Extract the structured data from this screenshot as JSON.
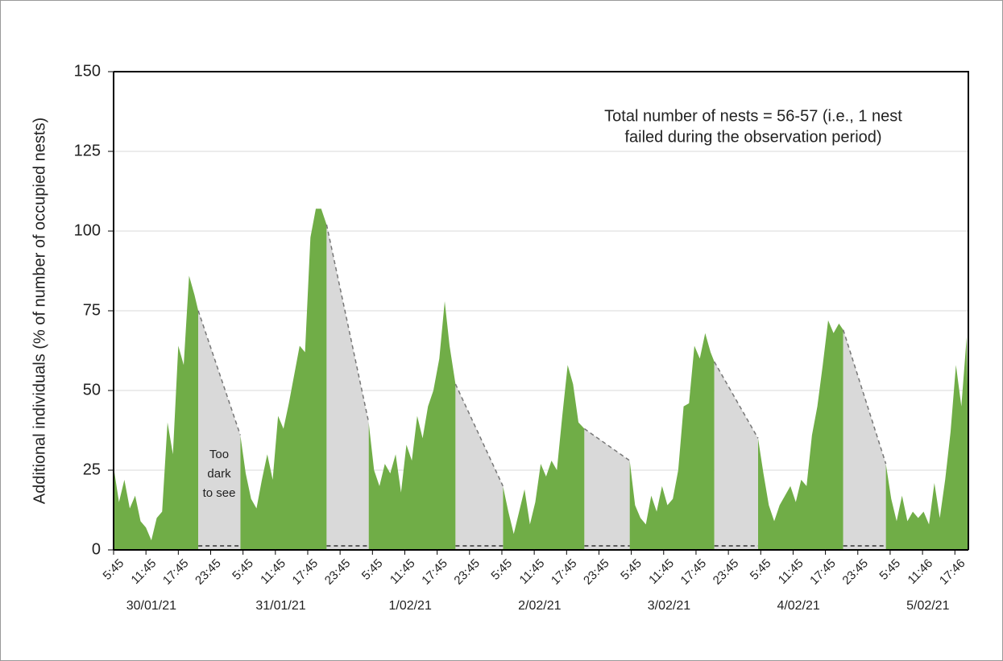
{
  "chart_data": {
    "type": "area",
    "y_label": "Additional individuals (% of number of occupied nests)",
    "annotation": [
      "Total number of nests = 56-57 (i.e., 1 nest",
      "failed during the observation period)"
    ],
    "gap_note": [
      "Too",
      "dark",
      "to see"
    ],
    "dates": [
      "30/01/21",
      "31/01/21",
      "1/02/21",
      "2/02/21",
      "3/02/21",
      "4/02/21",
      "5/02/21"
    ],
    "xlim": [
      0,
      158.5
    ],
    "xticks": [
      {
        "value": 0,
        "label": "5:45"
      },
      {
        "value": 6,
        "label": "11:45"
      },
      {
        "value": 12,
        "label": "17:45"
      },
      {
        "value": 18,
        "label": "23:45"
      },
      {
        "value": 24,
        "label": "5:45"
      },
      {
        "value": 30,
        "label": "11:45"
      },
      {
        "value": 36,
        "label": "17:45"
      },
      {
        "value": 42,
        "label": "23:45"
      },
      {
        "value": 48,
        "label": "5:45"
      },
      {
        "value": 54,
        "label": "11:45"
      },
      {
        "value": 60,
        "label": "17:45"
      },
      {
        "value": 66,
        "label": "23:45"
      },
      {
        "value": 72,
        "label": "5:45"
      },
      {
        "value": 78,
        "label": "11:45"
      },
      {
        "value": 84,
        "label": "17:45"
      },
      {
        "value": 90,
        "label": "23:45"
      },
      {
        "value": 96,
        "label": "5:45"
      },
      {
        "value": 102,
        "label": "11:45"
      },
      {
        "value": 108,
        "label": "17:45"
      },
      {
        "value": 114,
        "label": "23:45"
      },
      {
        "value": 120,
        "label": "5:45"
      },
      {
        "value": 126,
        "label": "11:45"
      },
      {
        "value": 132,
        "label": "17:45"
      },
      {
        "value": 138,
        "label": "23:45"
      },
      {
        "value": 144,
        "label": "5:45"
      },
      {
        "value": 150,
        "label": "11:46"
      },
      {
        "value": 156,
        "label": "17:46"
      }
    ],
    "ylim": [
      0,
      150
    ],
    "yticks": [
      0,
      25,
      50,
      75,
      100,
      125,
      150
    ],
    "grid": true,
    "series": [
      {
        "color": "#70ad47",
        "style": "solid",
        "x": [
          0,
          1,
          2,
          3,
          4,
          5,
          6,
          7,
          8,
          9,
          10,
          11,
          12,
          13,
          14,
          15,
          15.7,
          null,
          23.5,
          24.5,
          25.5,
          26.5,
          27.5,
          28.5,
          29.5,
          30.5,
          31.5,
          32.5,
          33.5,
          34.5,
          35.5,
          36.5,
          37.5,
          38.5,
          39.5,
          null,
          47.3,
          48.3,
          49.3,
          50.3,
          51.3,
          52.3,
          53.3,
          54.3,
          55.3,
          56.3,
          57.3,
          58.3,
          59.3,
          60.4,
          61.4,
          62.3,
          63.4,
          null,
          72.2,
          73.2,
          74.2,
          75.2,
          76.2,
          77.2,
          78.2,
          79.2,
          80.2,
          81.2,
          82.2,
          83.2,
          84.2,
          85.2,
          86.2,
          87.3,
          null,
          95.7,
          96.7,
          97.7,
          98.7,
          99.7,
          100.7,
          101.7,
          102.7,
          103.7,
          104.7,
          105.7,
          106.7,
          107.7,
          108.7,
          109.7,
          110.7,
          111.4,
          null,
          119.5,
          120.5,
          121.5,
          122.5,
          123.5,
          124.5,
          125.5,
          126.5,
          127.5,
          128.5,
          129.5,
          130.5,
          131.5,
          132.5,
          133.5,
          134.5,
          135.3,
          null,
          143.2,
          144.2,
          145.2,
          146.2,
          147.2,
          148.2,
          149.2,
          150.2,
          151.2,
          152.2,
          153.2,
          154.2,
          155.2,
          156.2,
          157.2,
          158.2,
          158.5
        ],
        "values": [
          26,
          15,
          22,
          13,
          17,
          9,
          7,
          3,
          10,
          12,
          40,
          30,
          64,
          58,
          86,
          80,
          75,
          null,
          36,
          24,
          16,
          13,
          22,
          30,
          22,
          42,
          38,
          46,
          55,
          64,
          62,
          98,
          107,
          107,
          102,
          null,
          40,
          25,
          20,
          27,
          24,
          30,
          18,
          33,
          28,
          42,
          35,
          45,
          50,
          60,
          78,
          64,
          52,
          null,
          20,
          12,
          5,
          12,
          19,
          8,
          15,
          27,
          23,
          28,
          25,
          42,
          58,
          52,
          40,
          38,
          null,
          28,
          14,
          10,
          8,
          17,
          12,
          20,
          14,
          16,
          25,
          45,
          46,
          64,
          60,
          68,
          62,
          59,
          null,
          35,
          24,
          14,
          9,
          14,
          17,
          20,
          15,
          22,
          20,
          36,
          45,
          58,
          72,
          68,
          71,
          69,
          null,
          27,
          16,
          9,
          17,
          9,
          12,
          10,
          12,
          8,
          21,
          10,
          22,
          37,
          58,
          45,
          67,
          36
        ]
      },
      {
        "color": "#d9d9d9",
        "style": "dashed",
        "x": [
          15.7,
          23.5,
          null,
          39.5,
          47.3,
          null,
          63.4,
          72.2,
          null,
          87.3,
          95.7,
          null,
          111.4,
          119.5,
          null,
          135.3,
          143.2
        ],
        "values": [
          75,
          36,
          null,
          102,
          40,
          null,
          52,
          20,
          null,
          38,
          28,
          null,
          59,
          35,
          null,
          69,
          27
        ]
      }
    ]
  }
}
